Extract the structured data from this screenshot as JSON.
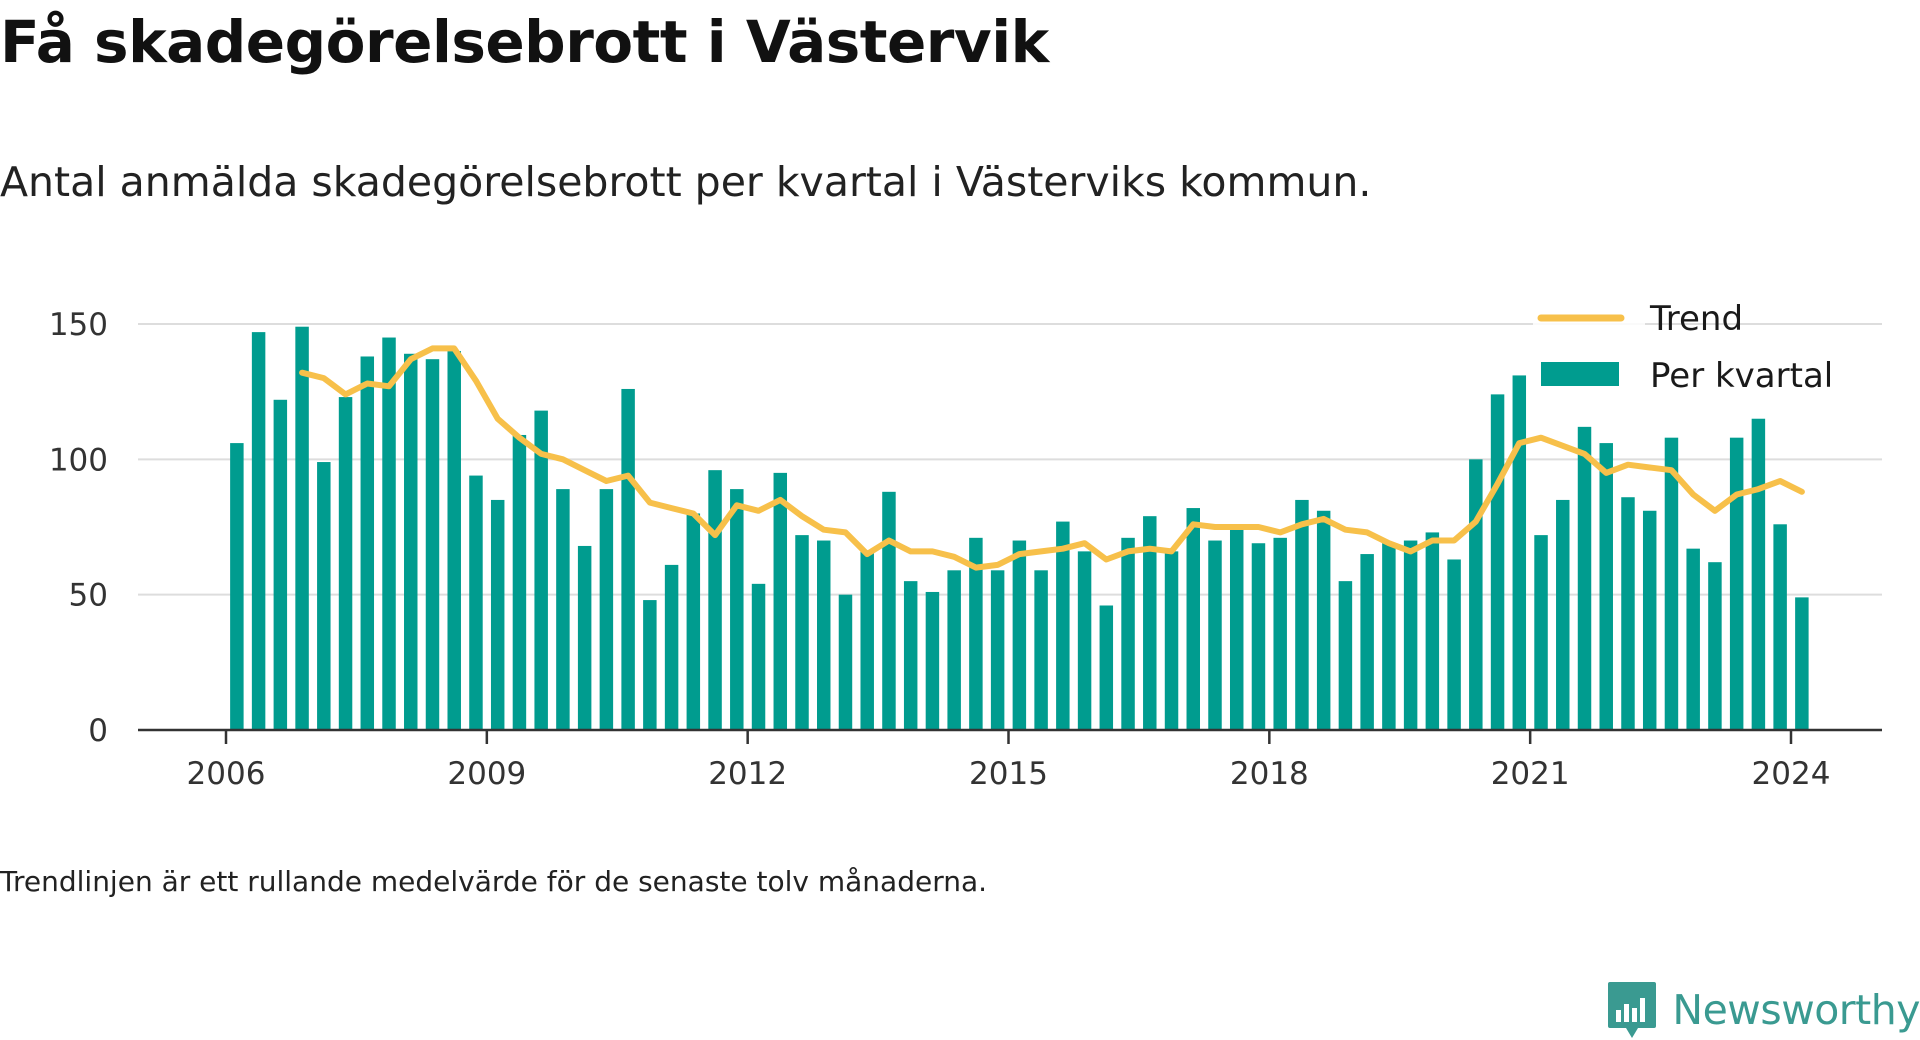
{
  "title": "Få skadegörelsebrott i Västervik",
  "subtitle": "Antal anmälda skadegörelsebrott per kvartal i Västerviks kommun.",
  "note": "Trendlinjen är ett rullande medelvärde för de senaste tolv månaderna.",
  "brand": {
    "name": "Newsworthy",
    "icon": "newsworthy-bar-chart-icon"
  },
  "colors": {
    "bars": "#009c8f",
    "trend": "#f7c04a",
    "grid": "#dddddd",
    "axis": "#333333"
  },
  "chart_data": {
    "type": "bar",
    "ylim": [
      0,
      150
    ],
    "yticks": [
      0,
      50,
      100,
      150
    ],
    "xticks": [
      "2006",
      "2009",
      "2012",
      "2015",
      "2018",
      "2021",
      "2024"
    ],
    "grid": "horizontal",
    "legend_position": "top-right",
    "x": [
      "2006-Q1",
      "2006-Q2",
      "2006-Q3",
      "2006-Q4",
      "2007-Q1",
      "2007-Q2",
      "2007-Q3",
      "2007-Q4",
      "2008-Q1",
      "2008-Q2",
      "2008-Q3",
      "2008-Q4",
      "2009-Q1",
      "2009-Q2",
      "2009-Q3",
      "2009-Q4",
      "2010-Q1",
      "2010-Q2",
      "2010-Q3",
      "2010-Q4",
      "2011-Q1",
      "2011-Q2",
      "2011-Q3",
      "2011-Q4",
      "2012-Q1",
      "2012-Q2",
      "2012-Q3",
      "2012-Q4",
      "2013-Q1",
      "2013-Q2",
      "2013-Q3",
      "2013-Q4",
      "2014-Q1",
      "2014-Q2",
      "2014-Q3",
      "2014-Q4",
      "2015-Q1",
      "2015-Q2",
      "2015-Q3",
      "2015-Q4",
      "2016-Q1",
      "2016-Q2",
      "2016-Q3",
      "2016-Q4",
      "2017-Q1",
      "2017-Q2",
      "2017-Q3",
      "2017-Q4",
      "2018-Q1",
      "2018-Q2",
      "2018-Q3",
      "2018-Q4",
      "2019-Q1",
      "2019-Q2",
      "2019-Q3",
      "2019-Q4",
      "2020-Q1",
      "2020-Q2",
      "2020-Q3",
      "2020-Q4",
      "2021-Q1",
      "2021-Q2",
      "2021-Q3",
      "2021-Q4",
      "2022-Q1",
      "2022-Q2",
      "2022-Q3",
      "2022-Q4",
      "2023-Q1",
      "2023-Q2",
      "2023-Q3",
      "2023-Q4",
      "2024-Q1"
    ],
    "series": [
      {
        "name": "Per kvartal",
        "kind": "bar",
        "values": [
          106,
          147,
          122,
          149,
          99,
          123,
          138,
          145,
          139,
          137,
          140,
          94,
          85,
          109,
          118,
          89,
          68,
          89,
          126,
          48,
          61,
          80,
          96,
          89,
          54,
          95,
          72,
          70,
          50,
          66,
          88,
          55,
          51,
          59,
          71,
          59,
          70,
          59,
          77,
          66,
          46,
          71,
          79,
          66,
          82,
          70,
          74,
          69,
          71,
          85,
          81,
          55,
          65,
          69,
          70,
          73,
          63,
          100,
          124,
          131,
          72,
          85,
          112,
          106,
          86,
          81,
          108,
          67,
          62,
          108,
          115,
          76,
          49
        ]
      },
      {
        "name": "Trend",
        "kind": "line",
        "values": [
          null,
          null,
          null,
          132,
          130,
          124,
          128,
          127,
          137,
          141,
          141,
          129,
          115,
          108,
          102,
          100,
          96,
          92,
          94,
          84,
          82,
          80,
          72,
          83,
          81,
          85,
          79,
          74,
          73,
          65,
          70,
          66,
          66,
          64,
          60,
          61,
          65,
          66,
          67,
          69,
          63,
          66,
          67,
          66,
          76,
          75,
          75,
          75,
          73,
          76,
          78,
          74,
          73,
          69,
          66,
          70,
          70,
          77,
          91,
          106,
          108,
          105,
          102,
          95,
          98,
          97,
          96,
          87,
          81,
          87,
          89,
          92,
          88
        ]
      }
    ]
  }
}
